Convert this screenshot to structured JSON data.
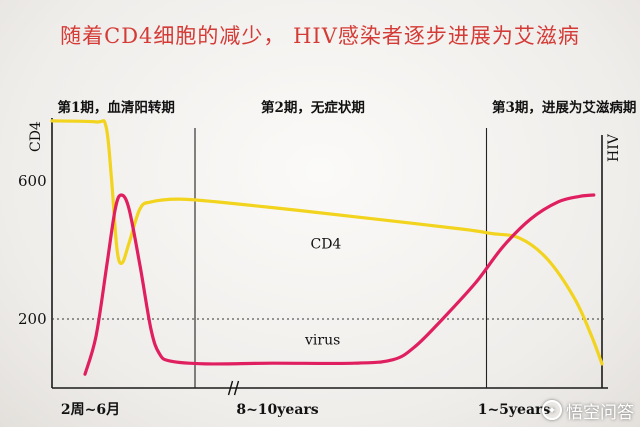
{
  "title": "随着CD4细胞的减少， HIV感染者逐步进展为艾滋病",
  "watermark": {
    "text": "悟空问答",
    "icon": "wukong-logo-icon"
  },
  "chart_data": {
    "type": "line",
    "y_left_label": "CD4",
    "y_right_label": "HIV",
    "y_ticks": [
      {
        "value": 600,
        "label": "600"
      },
      {
        "value": 200,
        "label": "200"
      }
    ],
    "ylim": [
      0,
      850
    ],
    "x_domain": [
      0,
      100
    ],
    "threshold_line": {
      "value": 200,
      "style": "dotted"
    },
    "phase_dividers": [
      26,
      79
    ],
    "axis_break": 33,
    "phases": [
      {
        "label": "第1期，血清阳转期",
        "x": 1
      },
      {
        "label": "第2期，无症状期",
        "x": 38
      },
      {
        "label": "第3期，进展为艾滋病期",
        "x": 80
      }
    ],
    "x_labels": [
      {
        "label": "2周~6月",
        "x": 7
      },
      {
        "label": "8~10years",
        "x": 41
      },
      {
        "label": "1~5years",
        "x": 84
      }
    ],
    "series": [
      {
        "name": "CD4",
        "color": "#f2d31d",
        "label_at": [
          47,
          405
        ],
        "points": [
          [
            0,
            775
          ],
          [
            8,
            772
          ],
          [
            9.8,
            760
          ],
          [
            10.8,
            610
          ],
          [
            11.8,
            405
          ],
          [
            12.7,
            362
          ],
          [
            14,
            420
          ],
          [
            16,
            520
          ],
          [
            18,
            540
          ],
          [
            23,
            548
          ],
          [
            30,
            540
          ],
          [
            45,
            515
          ],
          [
            60,
            488
          ],
          [
            75,
            460
          ],
          [
            80,
            448
          ],
          [
            85,
            435
          ],
          [
            90,
            375
          ],
          [
            95,
            260
          ],
          [
            98,
            155
          ],
          [
            100,
            70
          ]
        ]
      },
      {
        "name": "virus",
        "color": "#e01f60",
        "label_at": [
          46,
          126
        ],
        "points": [
          [
            6,
            40
          ],
          [
            8,
            150
          ],
          [
            10,
            360
          ],
          [
            11.5,
            520
          ],
          [
            12.6,
            560
          ],
          [
            14,
            520
          ],
          [
            16,
            355
          ],
          [
            18,
            170
          ],
          [
            19.5,
            100
          ],
          [
            21.5,
            78
          ],
          [
            28,
            70
          ],
          [
            40,
            72
          ],
          [
            55,
            72
          ],
          [
            62,
            82
          ],
          [
            66,
            120
          ],
          [
            71,
            200
          ],
          [
            77,
            305
          ],
          [
            82,
            410
          ],
          [
            87,
            490
          ],
          [
            92,
            540
          ],
          [
            96,
            556
          ],
          [
            98.5,
            560
          ]
        ]
      }
    ]
  }
}
